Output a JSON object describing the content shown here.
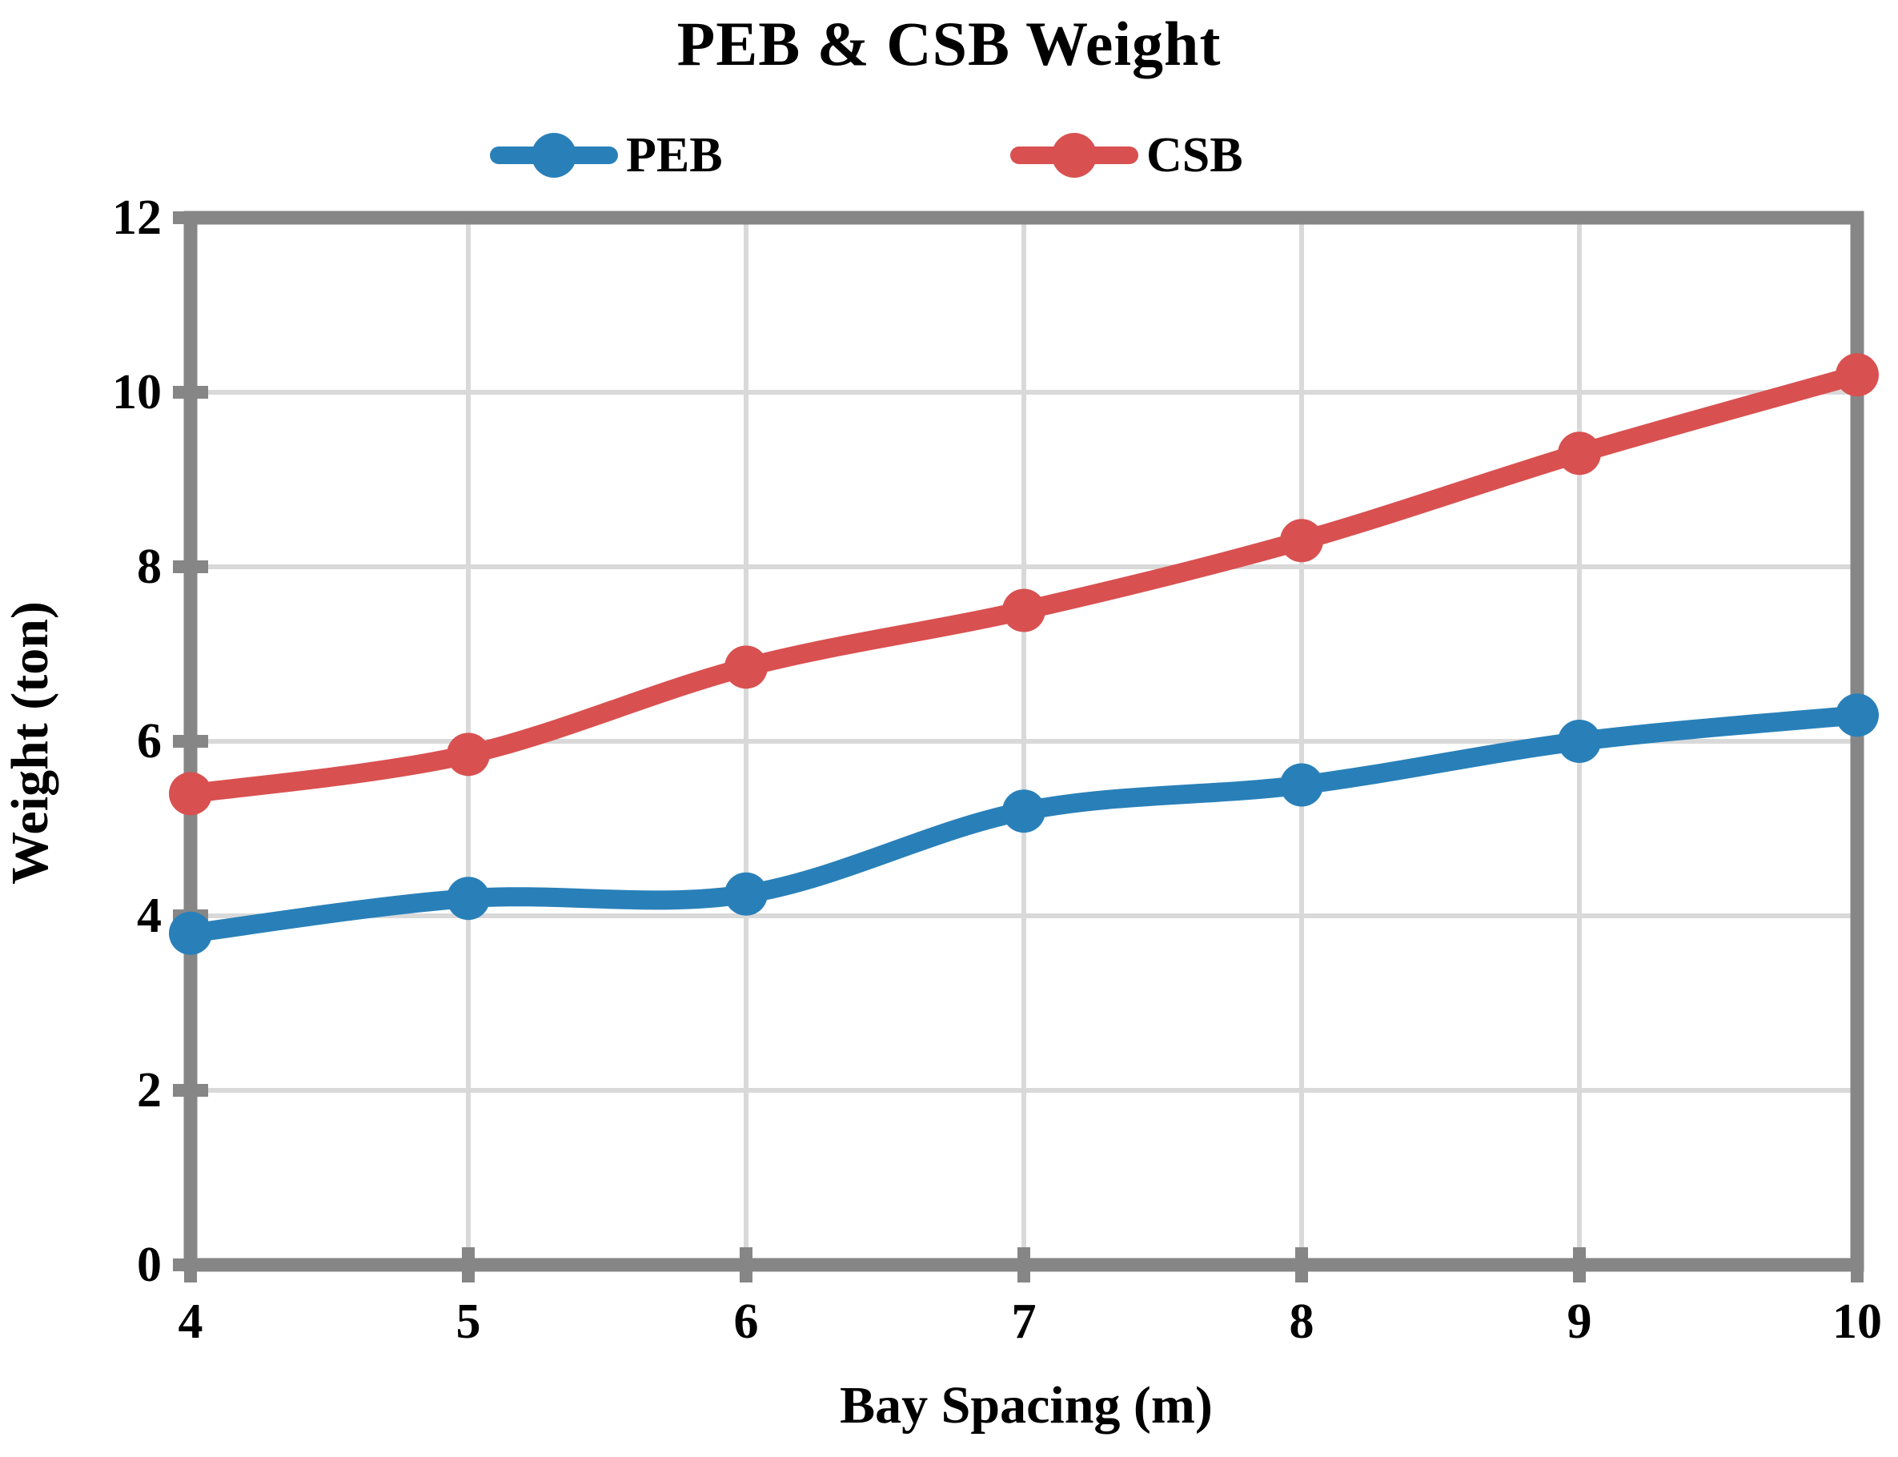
{
  "chart_data": {
    "type": "line",
    "title": "PEB & CSB Weight",
    "xlabel": "Bay Spacing (m)",
    "ylabel": "Weight (ton)",
    "x": [
      4,
      5,
      6,
      7,
      8,
      9,
      10
    ],
    "series": [
      {
        "name": "PEB",
        "color": "#2980B9",
        "values": [
          3.8,
          4.2,
          4.25,
          5.2,
          5.5,
          6.0,
          6.3
        ]
      },
      {
        "name": "CSB",
        "color": "#D95050",
        "values": [
          5.4,
          5.85,
          6.85,
          7.5,
          8.3,
          9.3,
          10.2
        ]
      }
    ],
    "xlim": [
      4,
      10
    ],
    "ylim": [
      0,
      12
    ],
    "xticks": [
      4,
      5,
      6,
      7,
      8,
      9,
      10
    ],
    "yticks": [
      0,
      2,
      4,
      6,
      8,
      10,
      12
    ],
    "grid": true,
    "legend_position": "top",
    "line_smooth": true
  },
  "colors": {
    "axis": "#868686",
    "grid": "#D9D9D9",
    "background": "#FFFFFF",
    "text": "#000000"
  }
}
